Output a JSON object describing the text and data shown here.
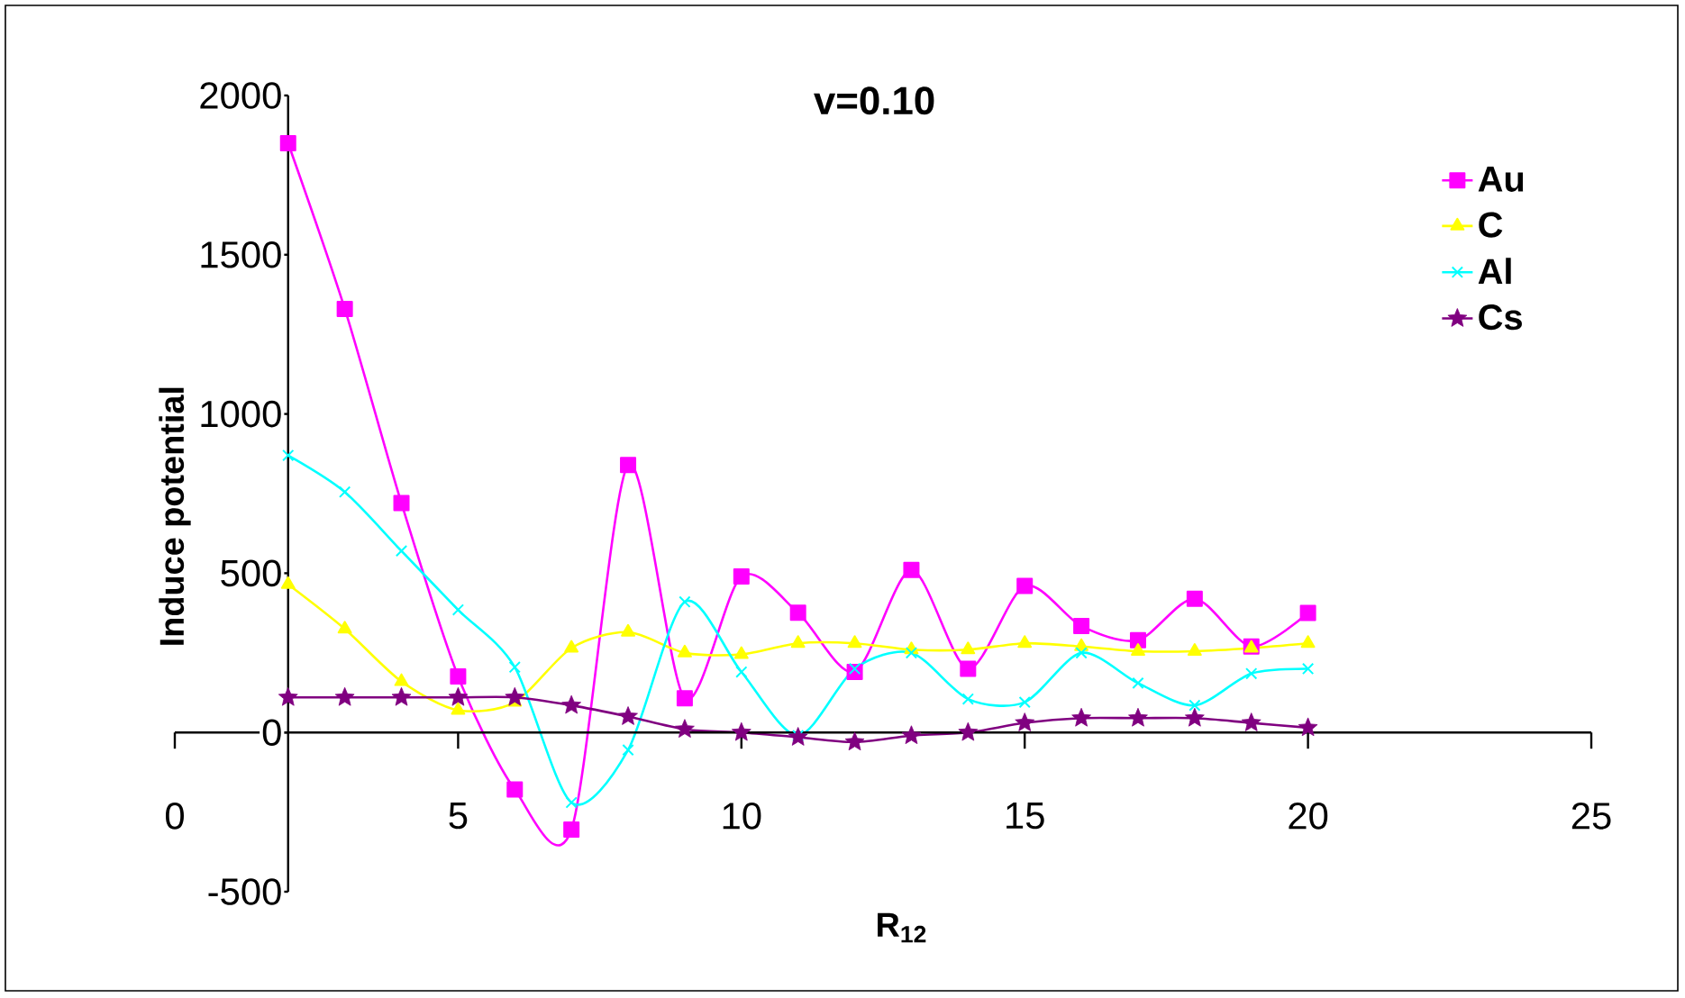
{
  "chart_data": {
    "type": "line",
    "title": "v=0.10",
    "xlabel": "R$_{12}$",
    "ylabel": "Induce potential",
    "x": [
      2,
      3,
      4,
      5,
      6,
      7,
      8,
      9,
      10,
      11,
      12,
      13,
      14,
      15,
      16,
      17,
      18,
      19,
      20
    ],
    "series": [
      {
        "name": "Au",
        "color": "#ff00ff",
        "marker": "square",
        "values": [
          1850,
          1330,
          720,
          176,
          -179,
          -305,
          840,
          107,
          490,
          376,
          190,
          510,
          200,
          460,
          334,
          290,
          420,
          270,
          375
        ]
      },
      {
        "name": "C",
        "color": "#ffff00",
        "marker": "triangle",
        "values": [
          465,
          325,
          160,
          70,
          95,
          265,
          315,
          250,
          245,
          280,
          280,
          260,
          260,
          280,
          270,
          255,
          255,
          265,
          280
        ]
      },
      {
        "name": "Al",
        "color": "#00ffff",
        "marker": "cross",
        "values": [
          870,
          755,
          570,
          385,
          205,
          -220,
          -55,
          410,
          190,
          -10,
          200,
          250,
          105,
          95,
          250,
          155,
          85,
          185,
          200
        ]
      },
      {
        "name": "Cs",
        "color": "#800080",
        "marker": "star",
        "values": [
          110,
          110,
          110,
          110,
          110,
          85,
          50,
          10,
          0,
          -15,
          -30,
          -10,
          0,
          30,
          45,
          45,
          45,
          30,
          15
        ]
      }
    ],
    "xlim": [
      0,
      25
    ],
    "ylim": [
      -500,
      2000
    ],
    "xticks": [
      0,
      5,
      10,
      15,
      20,
      25
    ],
    "yticks": [
      -500,
      0,
      500,
      1000,
      1500,
      2000
    ],
    "legend": "top right",
    "line_style": "solid"
  }
}
